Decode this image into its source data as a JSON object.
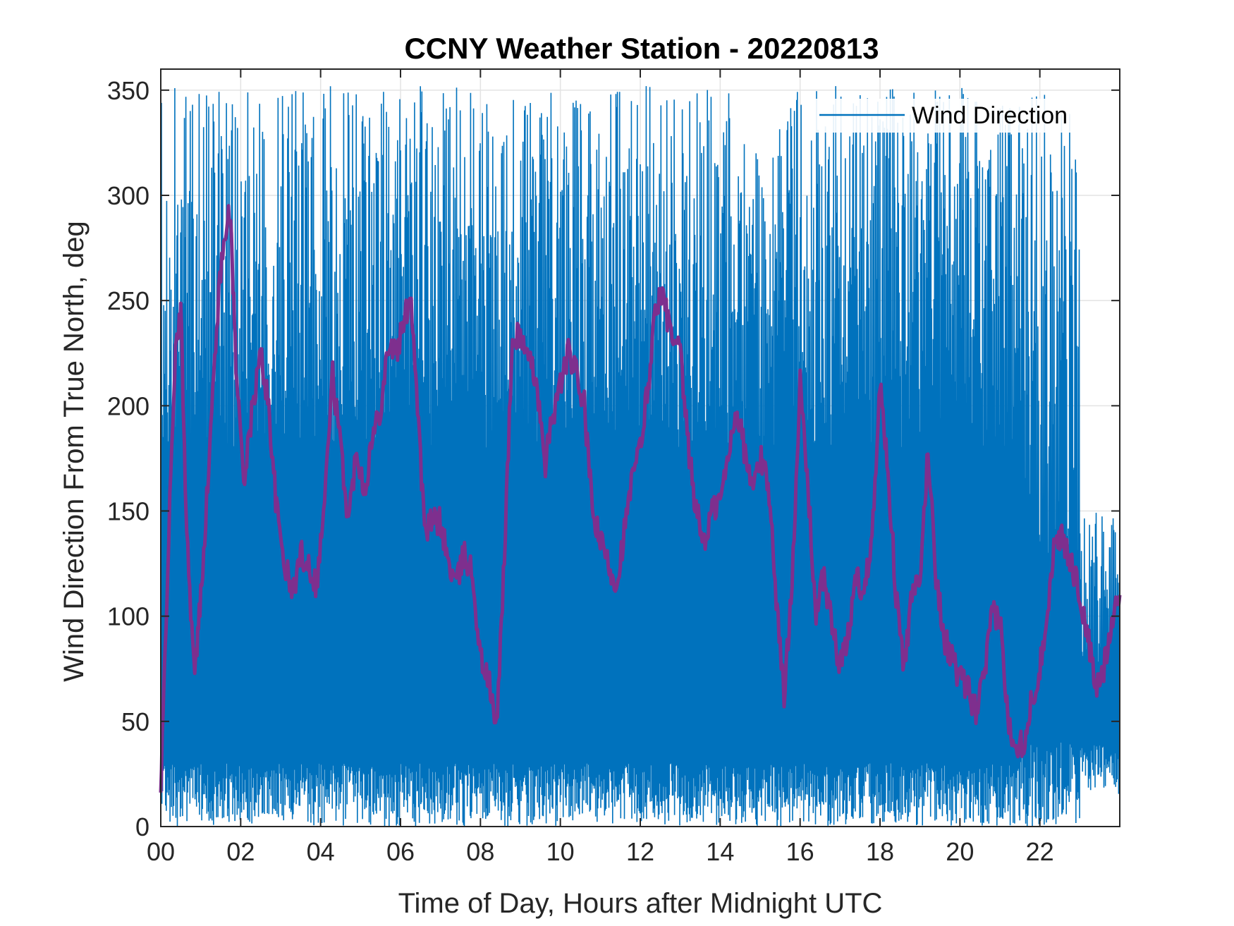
{
  "chart_data": {
    "type": "line",
    "title": "CCNY Weather Station - 20220813",
    "xlabel": "Time of Day, Hours after Midnight UTC",
    "ylabel": "Wind Direction From True North, deg",
    "xlim": [
      0,
      24
    ],
    "ylim": [
      0,
      360
    ],
    "x_ticks": [
      0,
      2,
      4,
      6,
      8,
      10,
      12,
      14,
      16,
      18,
      20,
      22
    ],
    "x_tick_labels": [
      "00",
      "02",
      "04",
      "06",
      "08",
      "10",
      "12",
      "14",
      "16",
      "18",
      "20",
      "22"
    ],
    "y_ticks": [
      0,
      50,
      100,
      150,
      200,
      250,
      300,
      350
    ],
    "y_tick_labels": [
      "0",
      "50",
      "100",
      "150",
      "200",
      "250",
      "300",
      "350"
    ],
    "grid": true,
    "legend": {
      "position": "top-right",
      "entries": [
        "Wind Direction"
      ]
    },
    "colors": {
      "raw": "#0072BD",
      "smoothed": "#7E2F8E"
    },
    "series": [
      {
        "name": "Wind Direction",
        "color": "#0072BD",
        "description_of_values": "high-frequency raw samples oscillating between ~0 and ~350 deg across the day; range narrows to ~15-150 deg after hour 23",
        "envelope": {
          "low": 0,
          "high": 352
        }
      },
      {
        "color": "#7E2F8E",
        "x": [
          0.0,
          0.15,
          0.35,
          0.5,
          0.65,
          0.85,
          1.0,
          1.2,
          1.4,
          1.6,
          1.75,
          1.9,
          2.1,
          2.3,
          2.5,
          2.7,
          2.9,
          3.1,
          3.3,
          3.5,
          3.7,
          3.9,
          4.1,
          4.3,
          4.5,
          4.7,
          4.9,
          5.1,
          5.3,
          5.5,
          5.7,
          5.9,
          6.1,
          6.25,
          6.4,
          6.6,
          6.8,
          7.0,
          7.2,
          7.4,
          7.6,
          7.8,
          8.0,
          8.2,
          8.4,
          8.6,
          8.8,
          9.0,
          9.2,
          9.4,
          9.6,
          9.8,
          10.0,
          10.2,
          10.4,
          10.6,
          10.8,
          11.0,
          11.2,
          11.4,
          11.6,
          11.8,
          12.0,
          12.2,
          12.4,
          12.6,
          12.8,
          13.0,
          13.2,
          13.4,
          13.6,
          13.8,
          14.0,
          14.2,
          14.4,
          14.6,
          14.8,
          15.0,
          15.2,
          15.4,
          15.6,
          15.8,
          16.0,
          16.2,
          16.4,
          16.6,
          16.8,
          17.0,
          17.2,
          17.4,
          17.6,
          17.8,
          18.0,
          18.2,
          18.4,
          18.6,
          18.8,
          19.0,
          19.2,
          19.4,
          19.6,
          19.8,
          20.0,
          20.2,
          20.4,
          20.6,
          20.8,
          21.0,
          21.2,
          21.4,
          21.6,
          21.8,
          22.0,
          22.2,
          22.4,
          22.6,
          22.8,
          23.0,
          23.2,
          23.4,
          23.6,
          23.8,
          24.0
        ],
        "y": [
          15,
          110,
          220,
          245,
          140,
          70,
          110,
          170,
          240,
          285,
          290,
          210,
          165,
          200,
          225,
          200,
          150,
          125,
          110,
          130,
          125,
          115,
          155,
          215,
          180,
          145,
          180,
          160,
          185,
          200,
          230,
          225,
          240,
          255,
          210,
          140,
          145,
          145,
          125,
          115,
          130,
          120,
          80,
          70,
          45,
          130,
          230,
          235,
          220,
          215,
          170,
          195,
          210,
          225,
          215,
          200,
          150,
          135,
          125,
          115,
          140,
          165,
          180,
          210,
          250,
          250,
          230,
          225,
          180,
          150,
          135,
          150,
          155,
          175,
          200,
          180,
          160,
          175,
          165,
          110,
          60,
          120,
          210,
          160,
          100,
          120,
          95,
          75,
          90,
          120,
          110,
          140,
          210,
          170,
          110,
          75,
          110,
          115,
          180,
          120,
          90,
          80,
          70,
          65,
          55,
          70,
          100,
          100,
          50,
          40,
          40,
          60,
          75,
          105,
          140,
          135,
          125,
          110,
          90,
          65,
          75,
          100,
          110
        ]
      }
    ]
  }
}
